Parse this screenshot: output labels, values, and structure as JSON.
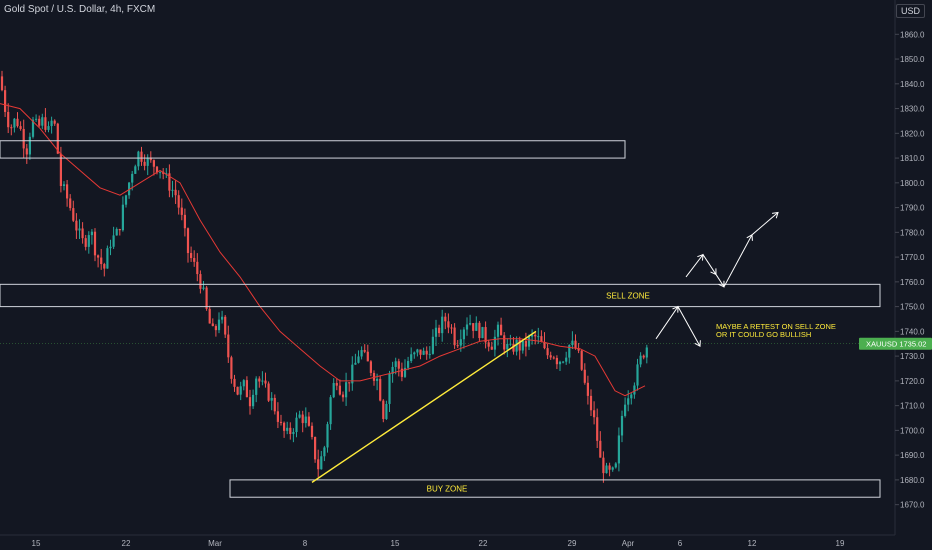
{
  "header": {
    "title": "Gold Spot / U.S. Dollar, 4h, FXCM",
    "currency": "USD"
  },
  "colors": {
    "background": "#131722",
    "up_candle": "#26a69a",
    "down_candle": "#ef5350",
    "moving_average": "#e53935",
    "trendline": "#ffeb3b",
    "zone_border": "#d1d4dc",
    "annotation_text": "#ffeb3b",
    "price_badge": "#4caf50"
  },
  "chart_data": {
    "type": "candlestick",
    "symbol": "XAUUSD",
    "interval": "4h",
    "ylim": [
      1664,
      1868
    ],
    "y_ticks": [
      1670,
      1680,
      1690,
      1700,
      1710,
      1720,
      1730,
      1740,
      1750,
      1760,
      1770,
      1780,
      1790,
      1800,
      1810,
      1820,
      1830,
      1840,
      1850,
      1860
    ],
    "x_ticks": [
      "15",
      "22",
      "Mar",
      "8",
      "15",
      "22",
      "29",
      "Apr",
      "6",
      "12",
      "19"
    ],
    "last_price": {
      "label": "XAUUSD",
      "value": "1735.02"
    },
    "ohlc_keypoints": [
      [
        0,
        1843
      ],
      [
        4,
        1832
      ],
      [
        10,
        1822
      ],
      [
        16,
        1826
      ],
      [
        22,
        1820
      ],
      [
        26,
        1812
      ],
      [
        32,
        1825
      ],
      [
        38,
        1822
      ],
      [
        44,
        1826
      ],
      [
        48,
        1820
      ],
      [
        52,
        1825
      ],
      [
        56,
        1822
      ],
      [
        60,
        1800
      ],
      [
        66,
        1795
      ],
      [
        72,
        1788
      ],
      [
        78,
        1780
      ],
      [
        84,
        1775
      ],
      [
        90,
        1782
      ],
      [
        96,
        1772
      ],
      [
        104,
        1765
      ],
      [
        110,
        1776
      ],
      [
        118,
        1780
      ],
      [
        126,
        1795
      ],
      [
        132,
        1805
      ],
      [
        138,
        1812
      ],
      [
        144,
        1810
      ],
      [
        150,
        1808
      ],
      [
        156,
        1807
      ],
      [
        162,
        1805
      ],
      [
        168,
        1800
      ],
      [
        176,
        1795
      ],
      [
        182,
        1785
      ],
      [
        188,
        1772
      ],
      [
        196,
        1765
      ],
      [
        202,
        1758
      ],
      [
        208,
        1745
      ],
      [
        214,
        1738
      ],
      [
        220,
        1748
      ],
      [
        226,
        1735
      ],
      [
        232,
        1722
      ],
      [
        238,
        1715
      ],
      [
        244,
        1718
      ],
      [
        250,
        1712
      ],
      [
        256,
        1722
      ],
      [
        262,
        1718
      ],
      [
        268,
        1715
      ],
      [
        276,
        1708
      ],
      [
        282,
        1700
      ],
      [
        288,
        1698
      ],
      [
        294,
        1702
      ],
      [
        300,
        1706
      ],
      [
        306,
        1704
      ],
      [
        312,
        1695
      ],
      [
        318,
        1685
      ],
      [
        324,
        1692
      ],
      [
        330,
        1712
      ],
      [
        336,
        1722
      ],
      [
        342,
        1715
      ],
      [
        348,
        1720
      ],
      [
        354,
        1725
      ],
      [
        360,
        1733
      ],
      [
        366,
        1728
      ],
      [
        372,
        1724
      ],
      [
        378,
        1720
      ],
      [
        384,
        1705
      ],
      [
        390,
        1725
      ],
      [
        396,
        1727
      ],
      [
        402,
        1723
      ],
      [
        408,
        1728
      ],
      [
        414,
        1730
      ],
      [
        420,
        1732
      ],
      [
        426,
        1730
      ],
      [
        432,
        1736
      ],
      [
        438,
        1740
      ],
      [
        444,
        1745
      ],
      [
        450,
        1743
      ],
      [
        456,
        1735
      ],
      [
        462,
        1741
      ],
      [
        468,
        1745
      ],
      [
        474,
        1742
      ],
      [
        480,
        1740
      ],
      [
        486,
        1737
      ],
      [
        492,
        1735
      ],
      [
        498,
        1740
      ],
      [
        504,
        1735
      ],
      [
        510,
        1732
      ],
      [
        516,
        1735
      ],
      [
        522,
        1733
      ],
      [
        528,
        1736
      ],
      [
        534,
        1738
      ],
      [
        540,
        1736
      ],
      [
        546,
        1730
      ],
      [
        552,
        1732
      ],
      [
        558,
        1728
      ],
      [
        564,
        1730
      ],
      [
        570,
        1735
      ],
      [
        576,
        1733
      ],
      [
        580,
        1728
      ],
      [
        584,
        1720
      ],
      [
        588,
        1712
      ],
      [
        592,
        1708
      ],
      [
        596,
        1700
      ],
      [
        600,
        1688
      ],
      [
        606,
        1683
      ],
      [
        612,
        1682
      ],
      [
        616,
        1685
      ],
      [
        620,
        1700
      ],
      [
        624,
        1712
      ],
      [
        628,
        1715
      ],
      [
        632,
        1718
      ],
      [
        636,
        1722
      ],
      [
        640,
        1728
      ],
      [
        644,
        1732
      ],
      [
        648,
        1735
      ]
    ],
    "moving_average_keypoints": [
      [
        0,
        1832
      ],
      [
        20,
        1830
      ],
      [
        40,
        1822
      ],
      [
        60,
        1812
      ],
      [
        80,
        1805
      ],
      [
        100,
        1798
      ],
      [
        120,
        1795
      ],
      [
        140,
        1800
      ],
      [
        160,
        1805
      ],
      [
        180,
        1800
      ],
      [
        200,
        1785
      ],
      [
        220,
        1772
      ],
      [
        240,
        1762
      ],
      [
        260,
        1750
      ],
      [
        280,
        1740
      ],
      [
        300,
        1733
      ],
      [
        320,
        1726
      ],
      [
        340,
        1720
      ],
      [
        360,
        1720
      ],
      [
        380,
        1722
      ],
      [
        400,
        1724
      ],
      [
        420,
        1726
      ],
      [
        440,
        1730
      ],
      [
        460,
        1733
      ],
      [
        480,
        1736
      ],
      [
        500,
        1737
      ],
      [
        520,
        1737
      ],
      [
        540,
        1736
      ],
      [
        560,
        1734
      ],
      [
        580,
        1733
      ],
      [
        595,
        1730
      ],
      [
        605,
        1723
      ],
      [
        615,
        1716
      ],
      [
        625,
        1714
      ],
      [
        635,
        1716
      ],
      [
        645,
        1718
      ]
    ],
    "trendline": {
      "from": [
        312,
        1679
      ],
      "to": [
        536,
        1740
      ]
    },
    "zones": [
      {
        "name": "upper-resistance",
        "y_top": 1817,
        "y_bottom": 1810,
        "x_end": 625,
        "label": ""
      },
      {
        "name": "sell-zone",
        "y_top": 1759,
        "y_bottom": 1750,
        "x_end": 880,
        "label": "SELL ZONE"
      },
      {
        "name": "buy-zone",
        "y_top": 1680,
        "y_bottom": 1673,
        "x_start": 230,
        "x_end": 880,
        "label": "BUY ZONE"
      }
    ],
    "projection_arrows": [
      [
        [
          656,
          1737
        ],
        [
          678,
          1750
        ],
        [
          700,
          1734
        ]
      ],
      [
        [
          686,
          1762
        ],
        [
          703,
          1771
        ],
        [
          716,
          1763
        ],
        [
          724,
          1758
        ],
        [
          752,
          1779
        ],
        [
          778,
          1788
        ]
      ]
    ],
    "annotation": [
      "MAYBE A RETEST ON SELL ZONE",
      "OR IT COULD GO BULLISH"
    ]
  }
}
